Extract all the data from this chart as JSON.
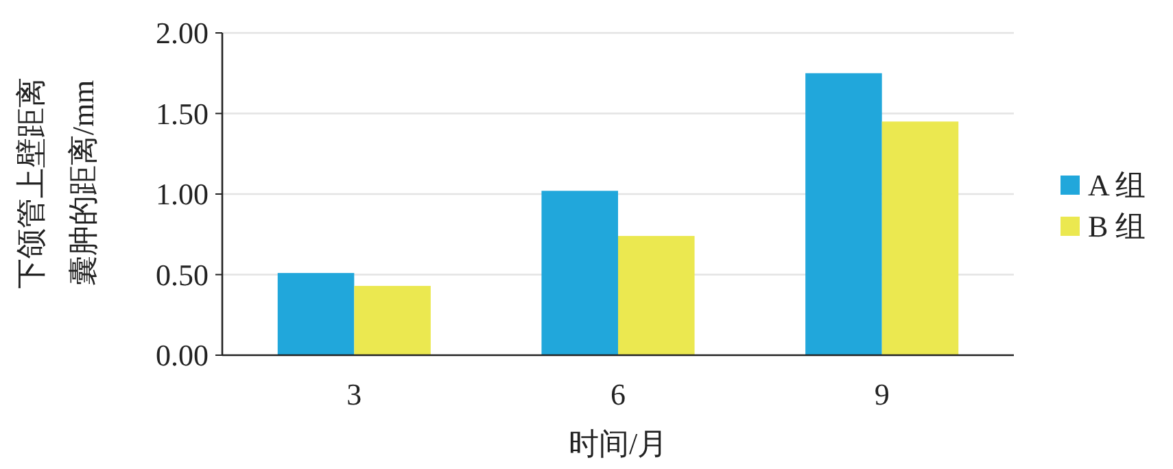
{
  "chart_data": {
    "type": "bar",
    "xlabel": "时间/月",
    "ylabel": "下颌管上壁距离囊肿的距离/mm",
    "categories": [
      "3",
      "6",
      "9"
    ],
    "series": [
      {
        "name": "A 组",
        "color": "#21a7db",
        "values": [
          0.51,
          1.02,
          1.75
        ]
      },
      {
        "name": "B 组",
        "color": "#ebe850",
        "values": [
          0.43,
          0.74,
          1.45
        ]
      }
    ],
    "ylim": [
      0,
      2
    ],
    "yticks": [
      {
        "value": 0,
        "label": "0.00"
      },
      {
        "value": 0.5,
        "label": "0.50"
      },
      {
        "value": 1,
        "label": "1.00"
      },
      {
        "value": 1.5,
        "label": "1.50"
      },
      {
        "value": 2,
        "label": "2.00"
      }
    ],
    "grid": "y",
    "legend": "right"
  }
}
